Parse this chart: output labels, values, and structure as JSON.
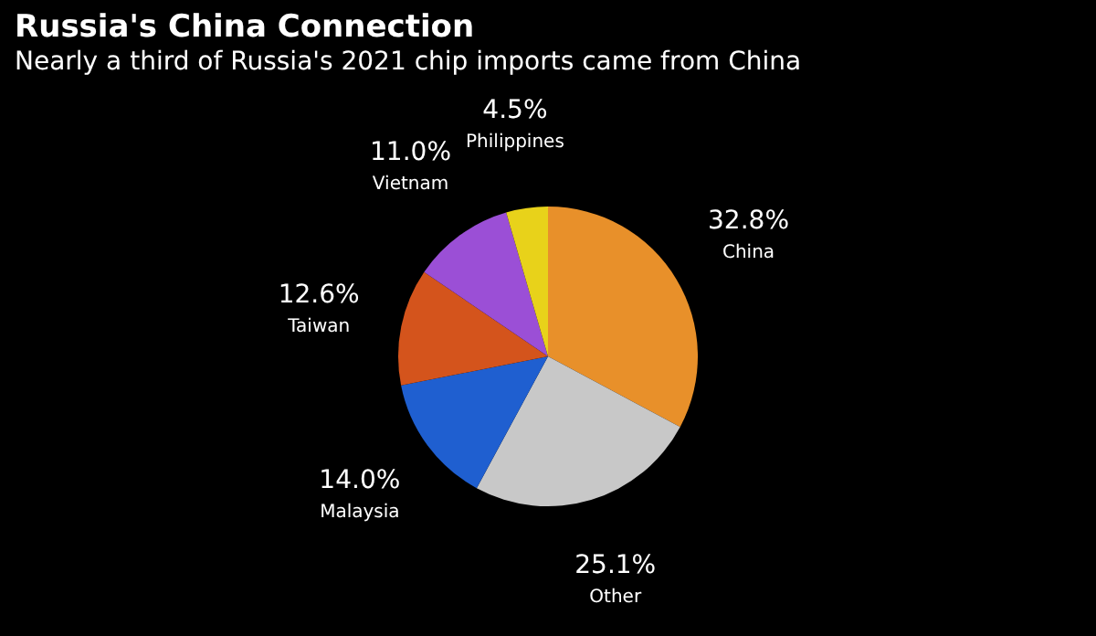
{
  "chart_data": {
    "type": "pie",
    "title": "Russia's China Connection",
    "subtitle": "Nearly a third of Russia's 2021 chip imports came from China",
    "categories": [
      "China",
      "Other",
      "Malaysia",
      "Taiwan",
      "Vietnam",
      "Philippines"
    ],
    "values": [
      32.8,
      25.1,
      14.0,
      12.6,
      11.0,
      4.5
    ],
    "value_labels": [
      "32.8%",
      "25.1%",
      "14.0%",
      "12.6%",
      "11.0%",
      "4.5%"
    ],
    "colors": [
      "#e8902a",
      "#c8c8c8",
      "#1f5fd0",
      "#d4541c",
      "#9b4fd6",
      "#e8d21a"
    ],
    "legend": false
  }
}
